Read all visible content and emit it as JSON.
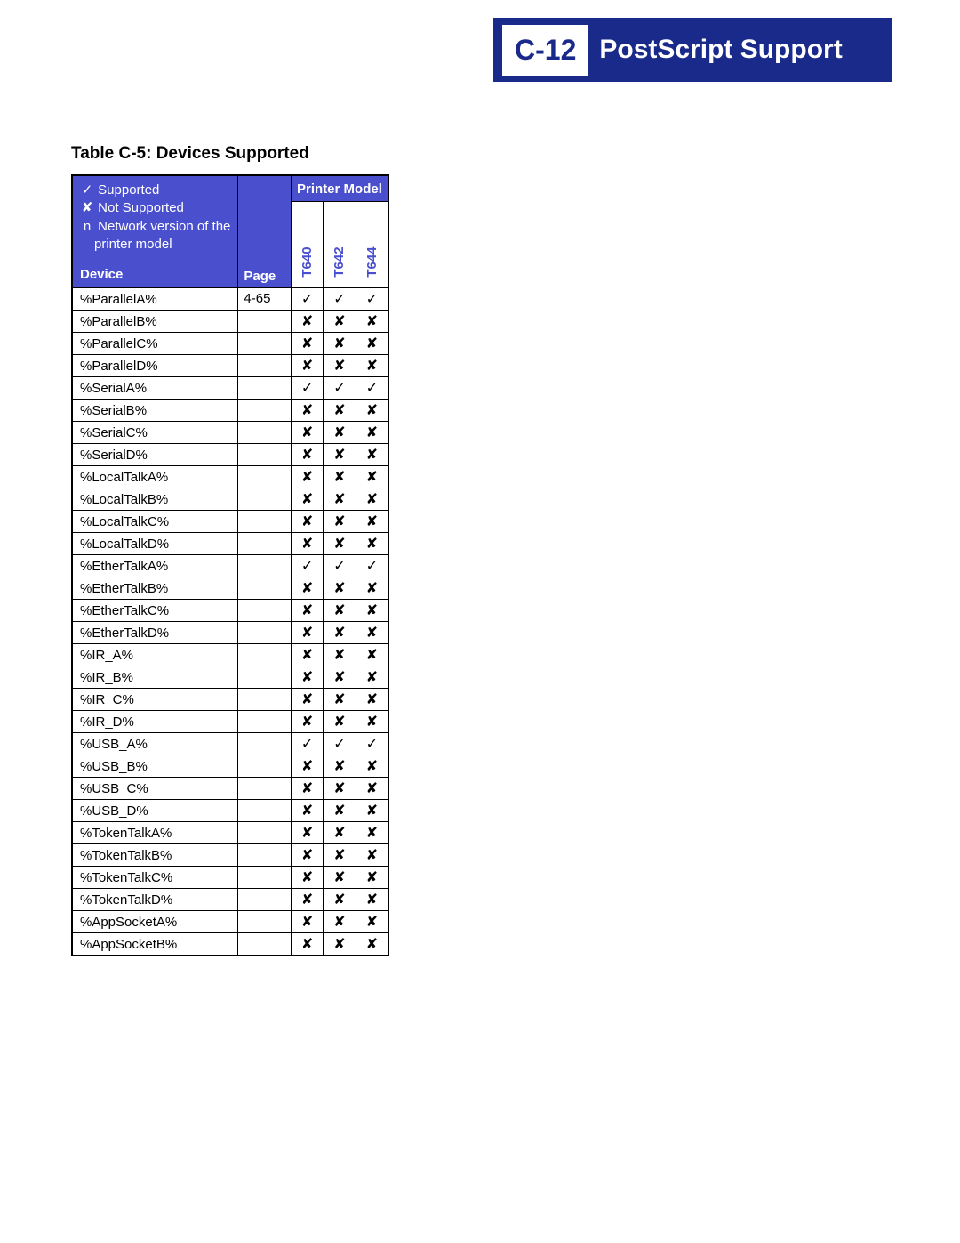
{
  "header": {
    "badge": "C-12",
    "title": "PostScript Support"
  },
  "caption": "Table C-5:  Devices Supported",
  "legend": {
    "supported_sym": "✓",
    "supported_txt": "Supported",
    "notsupported_sym": "✘",
    "notsupported_txt": "Not Supported",
    "network_sym": "n",
    "network_txt1": "Network version  of the",
    "network_txt2": "printer model",
    "device_label": "Device"
  },
  "columns": {
    "page": "Page",
    "printer_model": "Printer Model",
    "models": [
      "T640",
      "T642",
      "T644"
    ]
  },
  "glyphs": {
    "y": "✓",
    "n": "✘"
  },
  "rows": [
    {
      "device": "%ParallelA%",
      "page": "4-65",
      "v": [
        "y",
        "y",
        "y"
      ]
    },
    {
      "device": "%ParallelB%",
      "page": "",
      "v": [
        "n",
        "n",
        "n"
      ]
    },
    {
      "device": "%ParallelC%",
      "page": "",
      "v": [
        "n",
        "n",
        "n"
      ]
    },
    {
      "device": "%ParallelD%",
      "page": "",
      "v": [
        "n",
        "n",
        "n"
      ]
    },
    {
      "device": "%SerialA%",
      "page": "",
      "v": [
        "y",
        "y",
        "y"
      ]
    },
    {
      "device": "%SerialB%",
      "page": "",
      "v": [
        "n",
        "n",
        "n"
      ]
    },
    {
      "device": "%SerialC%",
      "page": "",
      "v": [
        "n",
        "n",
        "n"
      ]
    },
    {
      "device": "%SerialD%",
      "page": "",
      "v": [
        "n",
        "n",
        "n"
      ]
    },
    {
      "device": "%LocalTalkA%",
      "page": "",
      "v": [
        "n",
        "n",
        "n"
      ]
    },
    {
      "device": "%LocalTalkB%",
      "page": "",
      "v": [
        "n",
        "n",
        "n"
      ]
    },
    {
      "device": "%LocalTalkC%",
      "page": "",
      "v": [
        "n",
        "n",
        "n"
      ]
    },
    {
      "device": "%LocalTalkD%",
      "page": "",
      "v": [
        "n",
        "n",
        "n"
      ]
    },
    {
      "device": "%EtherTalkA%",
      "page": "",
      "v": [
        "y",
        "y",
        "y"
      ]
    },
    {
      "device": "%EtherTalkB%",
      "page": "",
      "v": [
        "n",
        "n",
        "n"
      ]
    },
    {
      "device": "%EtherTalkC%",
      "page": "",
      "v": [
        "n",
        "n",
        "n"
      ]
    },
    {
      "device": "%EtherTalkD%",
      "page": "",
      "v": [
        "n",
        "n",
        "n"
      ]
    },
    {
      "device": "%IR_A%",
      "page": "",
      "v": [
        "n",
        "n",
        "n"
      ]
    },
    {
      "device": "%IR_B%",
      "page": "",
      "v": [
        "n",
        "n",
        "n"
      ]
    },
    {
      "device": "%IR_C%",
      "page": "",
      "v": [
        "n",
        "n",
        "n"
      ]
    },
    {
      "device": "%IR_D%",
      "page": "",
      "v": [
        "n",
        "n",
        "n"
      ]
    },
    {
      "device": "%USB_A%",
      "page": "",
      "v": [
        "y",
        "y",
        "y"
      ]
    },
    {
      "device": "%USB_B%",
      "page": "",
      "v": [
        "n",
        "n",
        "n"
      ]
    },
    {
      "device": "%USB_C%",
      "page": "",
      "v": [
        "n",
        "n",
        "n"
      ]
    },
    {
      "device": "%USB_D%",
      "page": "",
      "v": [
        "n",
        "n",
        "n"
      ]
    },
    {
      "device": "%TokenTalkA%",
      "page": "",
      "v": [
        "n",
        "n",
        "n"
      ]
    },
    {
      "device": "%TokenTalkB%",
      "page": "",
      "v": [
        "n",
        "n",
        "n"
      ]
    },
    {
      "device": "%TokenTalkC%",
      "page": "",
      "v": [
        "n",
        "n",
        "n"
      ]
    },
    {
      "device": "%TokenTalkD%",
      "page": "",
      "v": [
        "n",
        "n",
        "n"
      ]
    },
    {
      "device": "%AppSocketA%",
      "page": "",
      "v": [
        "n",
        "n",
        "n"
      ]
    },
    {
      "device": "%AppSocketB%",
      "page": "",
      "v": [
        "n",
        "n",
        "n"
      ]
    }
  ]
}
